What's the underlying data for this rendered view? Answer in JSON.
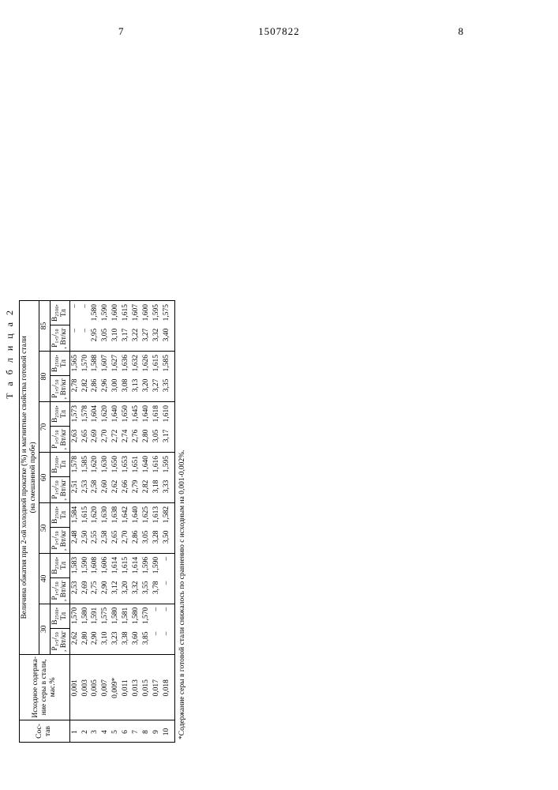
{
  "page_left": "7",
  "page_right": "8",
  "doc_number": "1507822",
  "table_label": "Т а б л и ц а  2",
  "head_main": "Величина обжатия при 2-ой холодной прокатке (%) и магнитные свойства готовой стали",
  "head_sub": "(на смешанной пробе)",
  "col_sostav": "Сос-\nтав",
  "col_sulfur": "Исходное\nсодержа-\nние серы\nв стали,\nмас.%",
  "groups": [
    "30",
    "40",
    "50",
    "60",
    "70",
    "80",
    "85"
  ],
  "sub_p": "P₁,₅/₅₀ ,\nВт/кг",
  "sub_b": "B₂₅₀₀,\nТл",
  "rows": [
    {
      "n": "1",
      "s": "0,001",
      "v": [
        "2,62",
        "1,570",
        "2,53",
        "1,583",
        "2,48",
        "1,584",
        "2,51",
        "1,578",
        "2,63",
        "1,573",
        "2,78",
        "1,565",
        "–",
        "–"
      ]
    },
    {
      "n": "2",
      "s": "0,003",
      "v": [
        "2,80",
        "1,580",
        "2,69",
        "1,590",
        "2,50",
        "1,615",
        "2,53",
        "1,585",
        "2,65",
        "1,578",
        "2,82",
        "1,570",
        "–",
        "–"
      ]
    },
    {
      "n": "3",
      "s": "0,005",
      "v": [
        "2,90",
        "1,591",
        "2,75",
        "1,608",
        "2,55",
        "1,620",
        "2,58",
        "1,620",
        "2,69",
        "1,604",
        "2,86",
        "1,588",
        "2,95",
        "1,580"
      ]
    },
    {
      "n": "4",
      "s": "0,007",
      "v": [
        "3,10",
        "1,575",
        "2,90",
        "1,606",
        "2,58",
        "1,630",
        "2,60",
        "1,630",
        "2,70",
        "1,620",
        "2,96",
        "1,607",
        "3,05",
        "1,590"
      ]
    },
    {
      "n": "5",
      "s": "0,009*",
      "v": [
        "3,23",
        "1,580",
        "3,12",
        "1,614",
        "2,65",
        "1,638",
        "2,62",
        "1,650",
        "2,72",
        "1,640",
        "3,00",
        "1,627",
        "3,10",
        "1,600"
      ]
    },
    {
      "n": "6",
      "s": "0,011",
      "v": [
        "3,38",
        "1,581",
        "3,20",
        "1,615",
        "2,70",
        "1,642",
        "2,66",
        "1,653",
        "2,74",
        "1,650",
        "3,08",
        "1,636",
        "3,17",
        "1,615"
      ]
    },
    {
      "n": "7",
      "s": "0,013",
      "v": [
        "3,60",
        "1,580",
        "3,32",
        "1,614",
        "2,86",
        "1,640",
        "2,79",
        "1,651",
        "2,76",
        "1,645",
        "3,13",
        "1,632",
        "3,22",
        "1,607"
      ]
    },
    {
      "n": "8",
      "s": "0,015",
      "v": [
        "3,85",
        "1,570",
        "3,55",
        "1,596",
        "3,05",
        "1,625",
        "2,82",
        "1,640",
        "2,80",
        "1,640",
        "3,20",
        "1,626",
        "3,27",
        "1,600"
      ]
    },
    {
      "n": "9",
      "s": "0,017",
      "v": [
        "–",
        "–",
        "3,78",
        "1,590",
        "3,28",
        "1,613",
        "3,18",
        "1,616",
        "3,05",
        "1,618",
        "3,27",
        "1,615",
        "3,32",
        "1,595"
      ]
    },
    {
      "n": "10",
      "s": "0,018",
      "v": [
        "–",
        "–",
        "–",
        "–",
        "3,50",
        "1,582",
        "3,33",
        "1,595",
        "3,17",
        "1,610",
        "3,35",
        "1,585",
        "3,40",
        "1,575"
      ]
    }
  ],
  "footnote": "*Содержание серы в готовой стали снижалось по сравнению с исходным на 0,001-0,002%."
}
